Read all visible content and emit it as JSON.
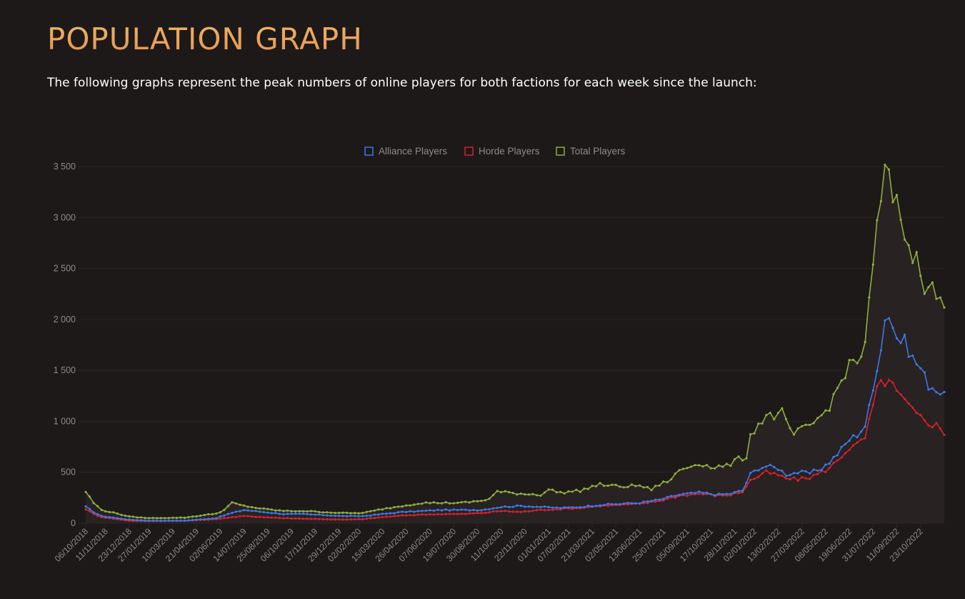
{
  "header": {
    "title": "POPULATION GRAPH",
    "intro": "The following graphs represent the peak numbers of online players for both factions for each week since the launch:"
  },
  "colors": {
    "alliance": "#3b78e7",
    "horde": "#d8202b",
    "total": "#8fae3f",
    "grid": "#2b2827",
    "tick_text": "#8c8c8c",
    "area_fill": "#2a2524"
  },
  "chart_data": {
    "type": "line",
    "title": "",
    "xlabel": "",
    "ylabel": "",
    "ylim": [
      0,
      3500
    ],
    "y_ticks": [
      0,
      500,
      1000,
      1500,
      2000,
      2500,
      3000,
      3500
    ],
    "y_tick_labels": [
      "0",
      "500",
      "1 000",
      "1 500",
      "2 000",
      "2 500",
      "3 000",
      "3 500"
    ],
    "x_tick_labels": [
      "06/10/2018",
      "11/11/2018",
      "23/12/2018",
      "27/01/2019",
      "10/03/2019",
      "21/04/2019",
      "02/06/2019",
      "14/07/2019",
      "25/08/2019",
      "06/10/2019",
      "17/11/2019",
      "29/12/2019",
      "02/02/2020",
      "15/03/2020",
      "26/04/2020",
      "07/06/2020",
      "19/07/2020",
      "30/08/2020",
      "11/10/2020",
      "22/11/2020",
      "01/01/2021",
      "07/02/2021",
      "21/03/2021",
      "02/05/2021",
      "13/06/2021",
      "25/07/2021",
      "05/09/2021",
      "17/10/2021",
      "28/11/2021",
      "02/01/2022",
      "13/02/2022",
      "27/03/2022",
      "08/05/2022",
      "19/06/2022",
      "31/07/2022",
      "11/09/2022",
      "23/10/2022"
    ],
    "x_tick_weeks": [
      0,
      5,
      11,
      16,
      22,
      28,
      34,
      40,
      46,
      52,
      58,
      64,
      69,
      75,
      81,
      87,
      93,
      99,
      105,
      111,
      117,
      122,
      128,
      134,
      140,
      146,
      152,
      158,
      164,
      169,
      175,
      181,
      187,
      193,
      199,
      205,
      211
    ],
    "legend_position": "top",
    "grid": true,
    "point_count": 218,
    "series": [
      {
        "name": "Alliance Players",
        "color": "#3b78e7",
        "anchors": [
          [
            0,
            160
          ],
          [
            2,
            110
          ],
          [
            4,
            70
          ],
          [
            8,
            50
          ],
          [
            11,
            35
          ],
          [
            16,
            25
          ],
          [
            25,
            25
          ],
          [
            33,
            50
          ],
          [
            36,
            90
          ],
          [
            40,
            130
          ],
          [
            45,
            110
          ],
          [
            50,
            90
          ],
          [
            55,
            90
          ],
          [
            60,
            80
          ],
          [
            65,
            70
          ],
          [
            70,
            70
          ],
          [
            75,
            90
          ],
          [
            80,
            110
          ],
          [
            85,
            120
          ],
          [
            90,
            130
          ],
          [
            95,
            130
          ],
          [
            100,
            130
          ],
          [
            105,
            160
          ],
          [
            110,
            170
          ],
          [
            115,
            160
          ],
          [
            120,
            150
          ],
          [
            125,
            160
          ],
          [
            130,
            180
          ],
          [
            135,
            190
          ],
          [
            140,
            200
          ],
          [
            145,
            230
          ],
          [
            150,
            280
          ],
          [
            155,
            300
          ],
          [
            160,
            280
          ],
          [
            163,
            290
          ],
          [
            166,
            320
          ],
          [
            168,
            480
          ],
          [
            170,
            540
          ],
          [
            172,
            560
          ],
          [
            175,
            540
          ],
          [
            177,
            480
          ],
          [
            180,
            500
          ],
          [
            183,
            490
          ],
          [
            186,
            540
          ],
          [
            188,
            600
          ],
          [
            190,
            680
          ],
          [
            193,
            820
          ],
          [
            195,
            870
          ],
          [
            197,
            960
          ],
          [
            199,
            1300
          ],
          [
            200,
            1550
          ],
          [
            201,
            1750
          ],
          [
            202,
            2000
          ],
          [
            203,
            2060
          ],
          [
            205,
            1820
          ],
          [
            207,
            1780
          ],
          [
            209,
            1620
          ],
          [
            211,
            1520
          ],
          [
            213,
            1360
          ],
          [
            215,
            1320
          ],
          [
            217,
            1240
          ]
        ],
        "note_values": "dense weekly values generated by interpolation between anchors"
      },
      {
        "name": "Horde Players",
        "color": "#d8202b",
        "anchors": [
          [
            0,
            140
          ],
          [
            2,
            90
          ],
          [
            4,
            60
          ],
          [
            8,
            40
          ],
          [
            11,
            25
          ],
          [
            16,
            20
          ],
          [
            25,
            25
          ],
          [
            33,
            40
          ],
          [
            36,
            55
          ],
          [
            40,
            70
          ],
          [
            45,
            60
          ],
          [
            50,
            50
          ],
          [
            55,
            45
          ],
          [
            60,
            40
          ],
          [
            65,
            35
          ],
          [
            70,
            40
          ],
          [
            75,
            60
          ],
          [
            80,
            75
          ],
          [
            85,
            85
          ],
          [
            90,
            90
          ],
          [
            95,
            90
          ],
          [
            100,
            100
          ],
          [
            105,
            120
          ],
          [
            110,
            110
          ],
          [
            115,
            130
          ],
          [
            120,
            140
          ],
          [
            125,
            150
          ],
          [
            130,
            170
          ],
          [
            135,
            180
          ],
          [
            140,
            190
          ],
          [
            145,
            220
          ],
          [
            150,
            270
          ],
          [
            155,
            290
          ],
          [
            160,
            270
          ],
          [
            163,
            280
          ],
          [
            166,
            310
          ],
          [
            168,
            420
          ],
          [
            170,
            460
          ],
          [
            172,
            500
          ],
          [
            175,
            470
          ],
          [
            177,
            440
          ],
          [
            180,
            430
          ],
          [
            183,
            450
          ],
          [
            186,
            500
          ],
          [
            188,
            540
          ],
          [
            190,
            620
          ],
          [
            193,
            740
          ],
          [
            195,
            770
          ],
          [
            197,
            840
          ],
          [
            199,
            1150
          ],
          [
            200,
            1300
          ],
          [
            201,
            1380
          ],
          [
            203,
            1400
          ],
          [
            205,
            1280
          ],
          [
            207,
            1200
          ],
          [
            209,
            1100
          ],
          [
            211,
            1040
          ],
          [
            213,
            990
          ],
          [
            215,
            960
          ],
          [
            217,
            890
          ]
        ]
      },
      {
        "name": "Total Players",
        "color": "#8fae3f",
        "anchors": [
          [
            0,
            310
          ],
          [
            2,
            200
          ],
          [
            4,
            130
          ],
          [
            8,
            95
          ],
          [
            11,
            65
          ],
          [
            16,
            50
          ],
          [
            25,
            55
          ],
          [
            30,
            80
          ],
          [
            33,
            95
          ],
          [
            35,
            130
          ],
          [
            37,
            200
          ],
          [
            40,
            170
          ],
          [
            45,
            140
          ],
          [
            50,
            120
          ],
          [
            55,
            120
          ],
          [
            60,
            110
          ],
          [
            65,
            100
          ],
          [
            70,
            100
          ],
          [
            75,
            140
          ],
          [
            80,
            170
          ],
          [
            85,
            200
          ],
          [
            90,
            200
          ],
          [
            95,
            200
          ],
          [
            100,
            220
          ],
          [
            102,
            240
          ],
          [
            104,
            310
          ],
          [
            110,
            290
          ],
          [
            115,
            280
          ],
          [
            117,
            330
          ],
          [
            120,
            300
          ],
          [
            125,
            320
          ],
          [
            128,
            360
          ],
          [
            130,
            380
          ],
          [
            135,
            360
          ],
          [
            140,
            370
          ],
          [
            143,
            330
          ],
          [
            145,
            380
          ],
          [
            148,
            430
          ],
          [
            150,
            520
          ],
          [
            155,
            590
          ],
          [
            158,
            550
          ],
          [
            162,
            560
          ],
          [
            165,
            630
          ],
          [
            167,
            650
          ],
          [
            168,
            870
          ],
          [
            170,
            960
          ],
          [
            172,
            1060
          ],
          [
            175,
            1050
          ],
          [
            176,
            1090
          ],
          [
            177,
            990
          ],
          [
            179,
            870
          ],
          [
            181,
            920
          ],
          [
            183,
            950
          ],
          [
            186,
            1060
          ],
          [
            188,
            1150
          ],
          [
            190,
            1320
          ],
          [
            192,
            1480
          ],
          [
            194,
            1600
          ],
          [
            195,
            1560
          ],
          [
            197,
            1780
          ],
          [
            198,
            2150
          ],
          [
            199,
            2500
          ],
          [
            200,
            2900
          ],
          [
            201,
            3200
          ],
          [
            202,
            3440
          ],
          [
            203,
            3360
          ],
          [
            204,
            3180
          ],
          [
            206,
            3050
          ],
          [
            207,
            2800
          ],
          [
            209,
            2640
          ],
          [
            211,
            2520
          ],
          [
            212,
            2340
          ],
          [
            213,
            2380
          ],
          [
            215,
            2220
          ],
          [
            217,
            2140
          ]
        ]
      }
    ]
  }
}
